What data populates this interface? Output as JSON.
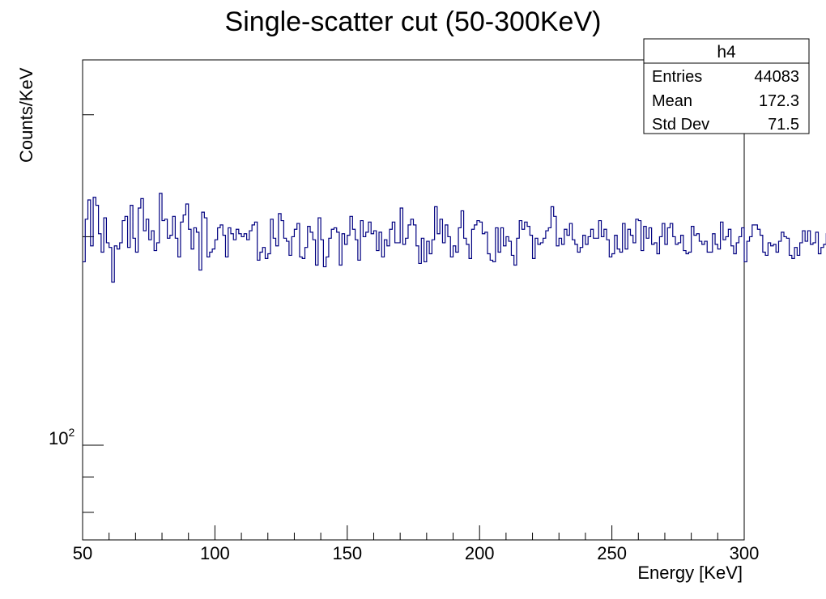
{
  "chart_data": {
    "type": "histogram",
    "title": "Single-scatter cut (50-300KeV)",
    "xlabel": "Energy [KeV]",
    "ylabel": "Counts/KeV",
    "xlim": [
      50,
      300
    ],
    "ylim": [
      73,
      360
    ],
    "y_scale": "log",
    "x_ticks": [
      50,
      100,
      150,
      200,
      250,
      300
    ],
    "x_tick_labels": [
      "50",
      "100",
      "150",
      "200",
      "250",
      "300"
    ],
    "y_tick_label": {
      "value": 100,
      "base": "10",
      "exponent": "2"
    },
    "bin_width": 1,
    "line_color": "#000080",
    "legend": "top-right",
    "series": [
      {
        "values": [
          184,
          212,
          226,
          194,
          228,
          222,
          202,
          190,
          213,
          196,
          193,
          172,
          194,
          192,
          196,
          211,
          214,
          193,
          222,
          199,
          190,
          220,
          227,
          204,
          212,
          198,
          204,
          191,
          196,
          231,
          211,
          212,
          199,
          201,
          214,
          199,
          187,
          210,
          215,
          223,
          205,
          192,
          206,
          203,
          179,
          217,
          213,
          187,
          190,
          192,
          198,
          206,
          208,
          201,
          187,
          206,
          202,
          198,
          205,
          202,
          200,
          202,
          198,
          204,
          208,
          210,
          185,
          190,
          193,
          186,
          189,
          212,
          199,
          194,
          216,
          211,
          199,
          197,
          188,
          200,
          205,
          209,
          187,
          186,
          193,
          207,
          203,
          198,
          182,
          213,
          198,
          181,
          187,
          199,
          205,
          206,
          203,
          182,
          202,
          195,
          201,
          214,
          205,
          198,
          185,
          211,
          200,
          203,
          210,
          202,
          204,
          191,
          203,
          187,
          198,
          194,
          205,
          210,
          196,
          196,
          220,
          195,
          199,
          208,
          212,
          208,
          194,
          183,
          199,
          184,
          197,
          189,
          198,
          221,
          202,
          212,
          196,
          208,
          200,
          187,
          194,
          190,
          206,
          218,
          199,
          195,
          186,
          205,
          208,
          211,
          210,
          202,
          203,
          189,
          185,
          184,
          206,
          190,
          206,
          194,
          200,
          197,
          188,
          182,
          199,
          211,
          205,
          210,
          207,
          201,
          186,
          199,
          195,
          196,
          199,
          204,
          206,
          221,
          214,
          194,
          199,
          195,
          205,
          201,
          209,
          198,
          195,
          190,
          193,
          201,
          195,
          200,
          205,
          199,
          199,
          211,
          200,
          205,
          198,
          187,
          189,
          201,
          192,
          190,
          209,
          192,
          205,
          201,
          196,
          212,
          211,
          191,
          207,
          199,
          206,
          195,
          196,
          189,
          200,
          209,
          195,
          206,
          209,
          200,
          195,
          196,
          201,
          191,
          189,
          190,
          207,
          201,
          202,
          197,
          195,
          197,
          190,
          190,
          202,
          195,
          192,
          210,
          198,
          200,
          205,
          194,
          189,
          196,
          200,
          206,
          184,
          197,
          200,
          208,
          208,
          205,
          201,
          190,
          188,
          196,
          194,
          195,
          190,
          197,
          203,
          200,
          199,
          188,
          186,
          193,
          188,
          196,
          204,
          197,
          204,
          195,
          196,
          203,
          189,
          193,
          195,
          202,
          189,
          206,
          197,
          193,
          198,
          199,
          194,
          194,
          199,
          191,
          204,
          196,
          194,
          204,
          198,
          192,
          196,
          197,
          187,
          195,
          198,
          198,
          197,
          188,
          191,
          193,
          193,
          205,
          191,
          194,
          200,
          195,
          187,
          196,
          194,
          192,
          188,
          190,
          193,
          196,
          201,
          197,
          195,
          188,
          199,
          195,
          199,
          186,
          193,
          197,
          194,
          190,
          193,
          191,
          194,
          189,
          193,
          195,
          191,
          201,
          192,
          189,
          196,
          197,
          197,
          189,
          189,
          195,
          186,
          192,
          192,
          188,
          189,
          191,
          192,
          192,
          188,
          189,
          187,
          193,
          190,
          195,
          190,
          190,
          188,
          191,
          186,
          192,
          188,
          188,
          196,
          194,
          190,
          188,
          190,
          189,
          191,
          191,
          190,
          187,
          191,
          191,
          187,
          194,
          186,
          185,
          192,
          187,
          186,
          190,
          185,
          185,
          188,
          186,
          185,
          188
        ]
      }
    ]
  },
  "stats_box": {
    "name": "h4",
    "rows": [
      {
        "label": "Entries",
        "value": "44083"
      },
      {
        "label": "Mean",
        "value": "172.3"
      },
      {
        "label": "Std Dev",
        "value": "71.5"
      }
    ]
  }
}
